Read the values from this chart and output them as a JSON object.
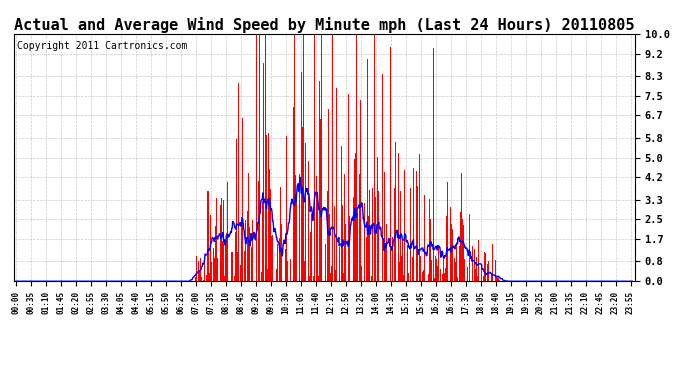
{
  "title": "Actual and Average Wind Speed by Minute mph (Last 24 Hours) 20110805",
  "copyright_text": "Copyright 2011 Cartronics.com",
  "bar_color": "#FF0000",
  "line_color": "#0000FF",
  "background_color": "#FFFFFF",
  "grid_color": "#BBBBBB",
  "yticks": [
    0.0,
    0.8,
    1.7,
    2.5,
    3.3,
    4.2,
    5.0,
    5.8,
    6.7,
    7.5,
    8.3,
    9.2,
    10.0
  ],
  "ylim": [
    0.0,
    10.0
  ],
  "title_fontsize": 11,
  "annotation_fontsize": 7,
  "tick_step_minutes": 35,
  "n_minutes": 1440
}
